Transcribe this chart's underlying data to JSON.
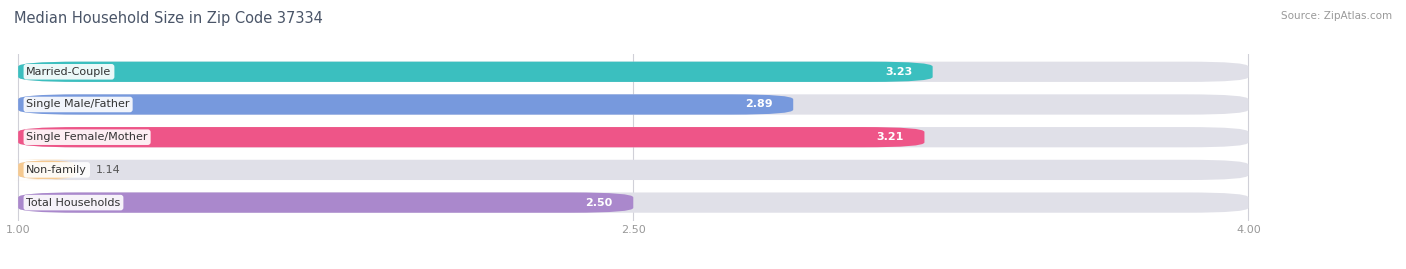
{
  "title": "Median Household Size in Zip Code 37334",
  "source": "Source: ZipAtlas.com",
  "categories": [
    "Married-Couple",
    "Single Male/Father",
    "Single Female/Mother",
    "Non-family",
    "Total Households"
  ],
  "values": [
    3.23,
    2.89,
    3.21,
    1.14,
    2.5
  ],
  "bar_colors": [
    "#3bbfbf",
    "#7799dd",
    "#ee5588",
    "#f5c990",
    "#aa88cc"
  ],
  "background_color": "#ffffff",
  "bar_bg_color": "#e0e0e8",
  "xmin": 1.0,
  "xmax": 4.0,
  "xticks": [
    1.0,
    2.5,
    4.0
  ],
  "xtick_labels": [
    "1.00",
    "2.50",
    "4.00"
  ],
  "title_fontsize": 10.5,
  "label_fontsize": 8.0,
  "value_fontsize": 8.0,
  "bar_height": 0.62,
  "source_fontsize": 7.5,
  "title_color": "#4a5568",
  "tick_color": "#999999",
  "grid_color": "#d0d0d8",
  "value_outside_threshold": 1.5
}
